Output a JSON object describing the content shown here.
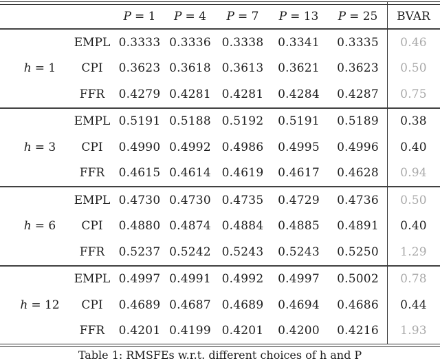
{
  "table": {
    "header": {
      "p_cols": [
        {
          "var": "P",
          "eq": "= 1"
        },
        {
          "var": "P",
          "eq": "= 4"
        },
        {
          "var": "P",
          "eq": "= 7"
        },
        {
          "var": "P",
          "eq": "= 13"
        },
        {
          "var": "P",
          "eq": "= 25"
        }
      ],
      "bvar_label": "BVAR"
    },
    "groups": [
      {
        "h_var": "h",
        "h_eq": "= 1",
        "rows": [
          {
            "variable": "EMPL",
            "values": [
              "0.3333",
              "0.3336",
              "0.3338",
              "0.3341",
              "0.3335"
            ],
            "bvar": "0.46",
            "bvar_style": "gray"
          },
          {
            "variable": "CPI",
            "values": [
              "0.3623",
              "0.3618",
              "0.3613",
              "0.3621",
              "0.3623"
            ],
            "bvar": "0.50",
            "bvar_style": "gray"
          },
          {
            "variable": "FFR",
            "values": [
              "0.4279",
              "0.4281",
              "0.4281",
              "0.4284",
              "0.4287"
            ],
            "bvar": "0.75",
            "bvar_style": "gray"
          }
        ]
      },
      {
        "h_var": "h",
        "h_eq": "= 3",
        "rows": [
          {
            "variable": "EMPL",
            "values": [
              "0.5191",
              "0.5188",
              "0.5192",
              "0.5191",
              "0.5189"
            ],
            "bvar": "0.38",
            "bvar_style": "black"
          },
          {
            "variable": "CPI",
            "values": [
              "0.4990",
              "0.4992",
              "0.4986",
              "0.4995",
              "0.4996"
            ],
            "bvar": "0.40",
            "bvar_style": "black"
          },
          {
            "variable": "FFR",
            "values": [
              "0.4615",
              "0.4614",
              "0.4619",
              "0.4617",
              "0.4628"
            ],
            "bvar": "0.94",
            "bvar_style": "gray"
          }
        ]
      },
      {
        "h_var": "h",
        "h_eq": "= 6",
        "rows": [
          {
            "variable": "EMPL",
            "values": [
              "0.4730",
              "0.4730",
              "0.4735",
              "0.4729",
              "0.4736"
            ],
            "bvar": "0.50",
            "bvar_style": "gray"
          },
          {
            "variable": "CPI",
            "values": [
              "0.4880",
              "0.4874",
              "0.4884",
              "0.4885",
              "0.4891"
            ],
            "bvar": "0.40",
            "bvar_style": "black"
          },
          {
            "variable": "FFR",
            "values": [
              "0.5237",
              "0.5242",
              "0.5243",
              "0.5243",
              "0.5250"
            ],
            "bvar": "1.29",
            "bvar_style": "gray"
          }
        ]
      },
      {
        "h_var": "h",
        "h_eq": "= 12",
        "rows": [
          {
            "variable": "EMPL",
            "values": [
              "0.4997",
              "0.4991",
              "0.4992",
              "0.4997",
              "0.5002"
            ],
            "bvar": "0.78",
            "bvar_style": "gray"
          },
          {
            "variable": "CPI",
            "values": [
              "0.4689",
              "0.4687",
              "0.4689",
              "0.4694",
              "0.4686"
            ],
            "bvar": "0.44",
            "bvar_style": "black"
          },
          {
            "variable": "FFR",
            "values": [
              "0.4201",
              "0.4199",
              "0.4201",
              "0.4200",
              "0.4216"
            ],
            "bvar": "1.93",
            "bvar_style": "gray"
          }
        ]
      }
    ]
  },
  "caption": "Table 1: RMSFEs w.r.t. different choices of h and P",
  "colors": {
    "text": "#1d1d1d",
    "muted_value": "#a9a9a9",
    "rule": "#3c3c3c"
  }
}
